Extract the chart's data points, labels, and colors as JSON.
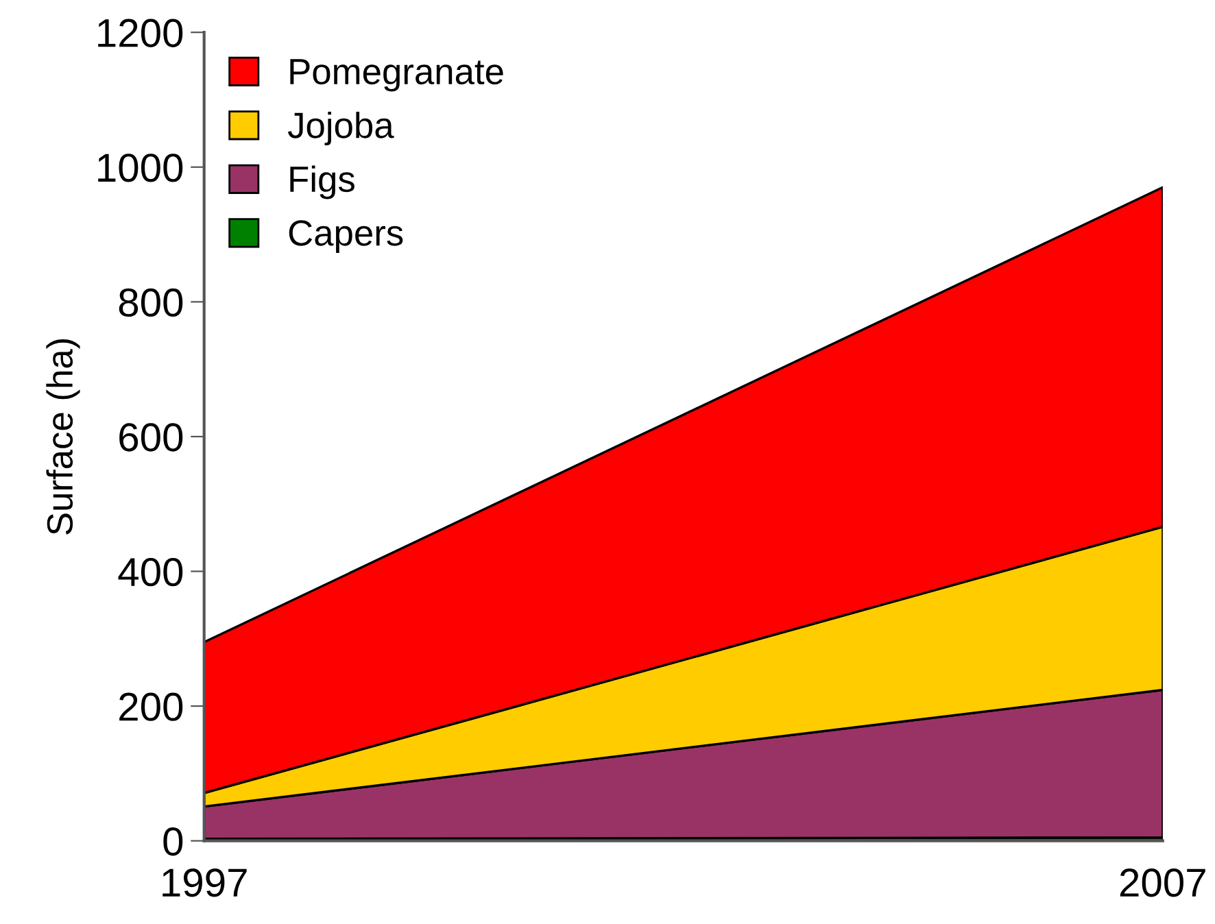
{
  "chart_data": {
    "type": "area",
    "stacked": true,
    "ylabel": "Surface (ha)",
    "x": [
      1997,
      2007
    ],
    "xlim": [
      1997,
      2007
    ],
    "xticks": [
      1997,
      2007
    ],
    "ylim": [
      0,
      1200
    ],
    "yticks": [
      0,
      200,
      400,
      600,
      800,
      1000,
      1200
    ],
    "grid": false,
    "legend": "top left",
    "series": [
      {
        "name": "Capers",
        "color": "#008000",
        "values": [
          3,
          5
        ]
      },
      {
        "name": "Figs",
        "color": "#993366",
        "values": [
          48,
          219
        ]
      },
      {
        "name": "Jojoba",
        "color": "#ffcc00",
        "values": [
          20,
          242
        ]
      },
      {
        "name": "Pomegranate",
        "color": "#ff0000",
        "values": [
          224,
          504
        ]
      }
    ]
  }
}
